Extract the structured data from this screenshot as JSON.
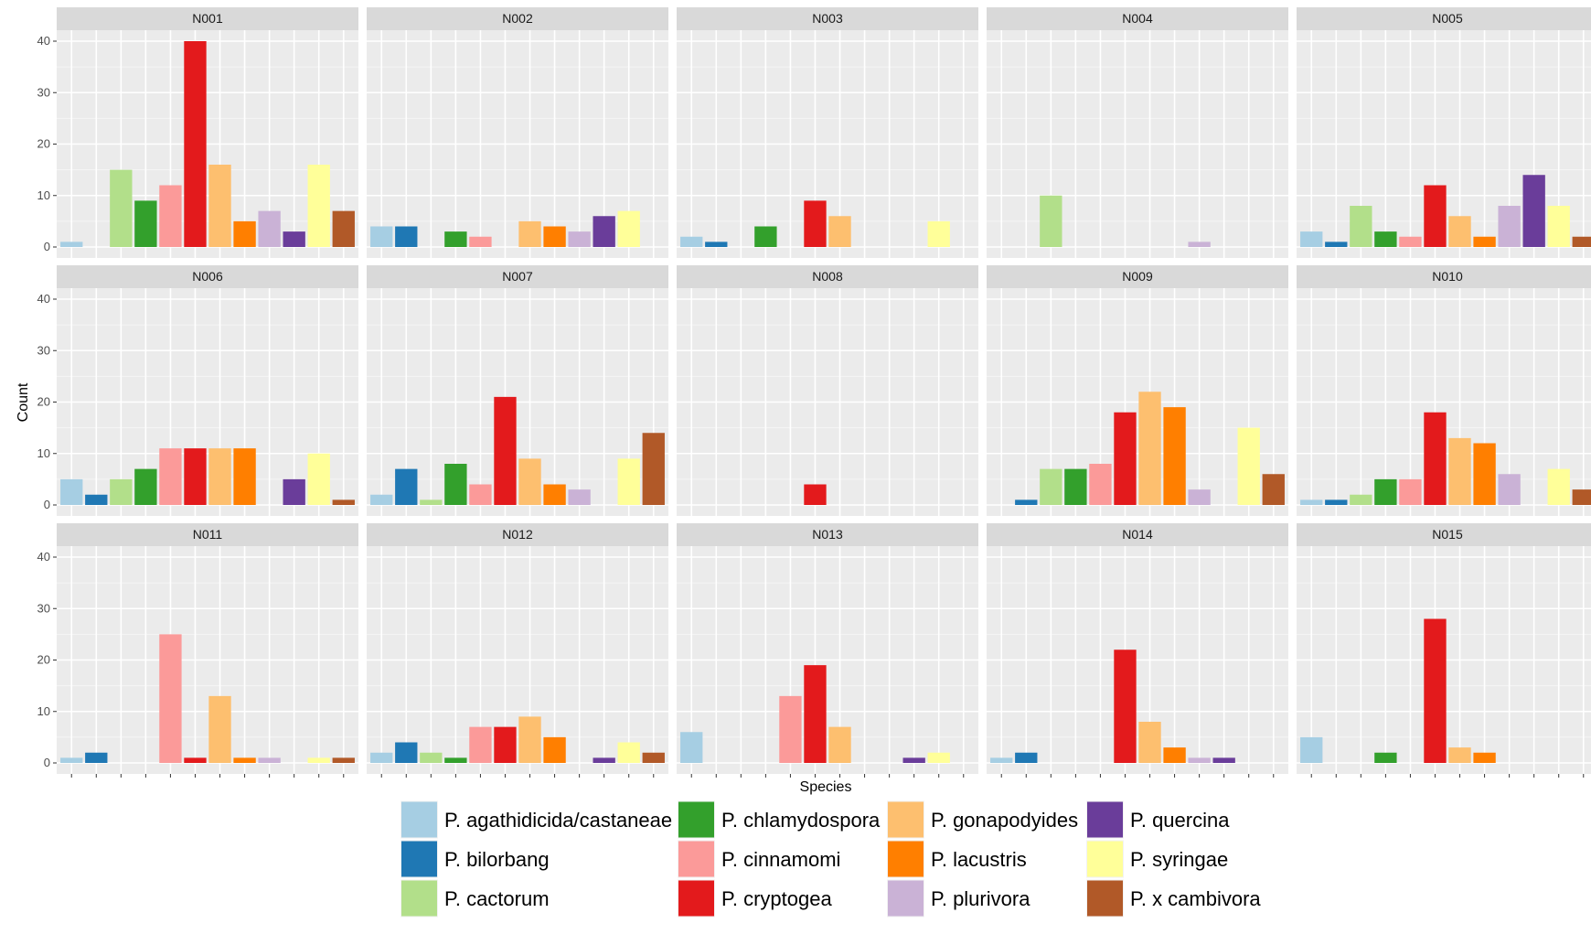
{
  "chart_data": {
    "type": "bar",
    "xlabel": "Species",
    "ylabel": "Count",
    "ylim": [
      0,
      40
    ],
    "yticks": [
      0,
      10,
      20,
      30,
      40
    ],
    "grid": true,
    "legend_position": "bottom",
    "species": [
      {
        "name": "P. agathidicida/castaneae",
        "color": "#A6CEE3"
      },
      {
        "name": "P. bilorbang",
        "color": "#1F78B4"
      },
      {
        "name": "P. cactorum",
        "color": "#B2DF8A"
      },
      {
        "name": "P. chlamydospora",
        "color": "#33A02C"
      },
      {
        "name": "P. cinnamomi",
        "color": "#FB9A99"
      },
      {
        "name": "P. cryptogea",
        "color": "#E31A1C"
      },
      {
        "name": "P. gonapodyides",
        "color": "#FDBF6F"
      },
      {
        "name": "P. lacustris",
        "color": "#FF7F00"
      },
      {
        "name": "P. plurivora",
        "color": "#CAB2D6"
      },
      {
        "name": "P. quercina",
        "color": "#6A3D9A"
      },
      {
        "name": "P. syringae",
        "color": "#FFFF99"
      },
      {
        "name": "P. x cambivora",
        "color": "#B15928"
      }
    ],
    "panels": [
      {
        "label": "N001",
        "values": [
          1,
          0,
          15,
          9,
          12,
          40,
          16,
          5,
          7,
          3,
          16,
          7
        ]
      },
      {
        "label": "N002",
        "values": [
          4,
          4,
          0,
          3,
          2,
          0,
          5,
          4,
          3,
          6,
          7,
          0
        ]
      },
      {
        "label": "N003",
        "values": [
          2,
          1,
          0,
          4,
          0,
          9,
          6,
          0,
          0,
          0,
          5,
          0
        ]
      },
      {
        "label": "N004",
        "values": [
          0,
          0,
          10,
          0,
          0,
          0,
          0,
          0,
          1,
          0,
          0,
          0
        ]
      },
      {
        "label": "N005",
        "values": [
          3,
          1,
          8,
          3,
          2,
          12,
          6,
          2,
          8,
          14,
          8,
          2
        ]
      },
      {
        "label": "N006",
        "values": [
          5,
          2,
          5,
          7,
          11,
          11,
          11,
          11,
          0,
          5,
          10,
          1
        ]
      },
      {
        "label": "N007",
        "values": [
          2,
          7,
          1,
          8,
          4,
          21,
          9,
          4,
          3,
          0,
          9,
          14
        ]
      },
      {
        "label": "N008",
        "values": [
          0,
          0,
          0,
          0,
          0,
          4,
          0,
          0,
          0,
          0,
          0,
          0
        ]
      },
      {
        "label": "N009",
        "values": [
          0,
          1,
          7,
          7,
          8,
          18,
          22,
          19,
          3,
          0,
          15,
          6
        ]
      },
      {
        "label": "N010",
        "values": [
          1,
          1,
          2,
          5,
          5,
          18,
          13,
          12,
          6,
          0,
          7,
          3
        ]
      },
      {
        "label": "N011",
        "values": [
          1,
          2,
          0,
          0,
          25,
          1,
          13,
          1,
          1,
          0,
          1,
          1
        ]
      },
      {
        "label": "N012",
        "values": [
          2,
          4,
          2,
          1,
          7,
          7,
          9,
          5,
          0,
          1,
          4,
          2
        ]
      },
      {
        "label": "N013",
        "values": [
          6,
          0,
          0,
          0,
          13,
          19,
          7,
          0,
          0,
          1,
          2,
          0
        ]
      },
      {
        "label": "N014",
        "values": [
          1,
          2,
          0,
          0,
          0,
          22,
          8,
          3,
          1,
          1,
          0,
          0
        ]
      },
      {
        "label": "N015",
        "values": [
          5,
          0,
          0,
          2,
          0,
          28,
          3,
          2,
          0,
          0,
          0,
          0
        ]
      }
    ]
  }
}
